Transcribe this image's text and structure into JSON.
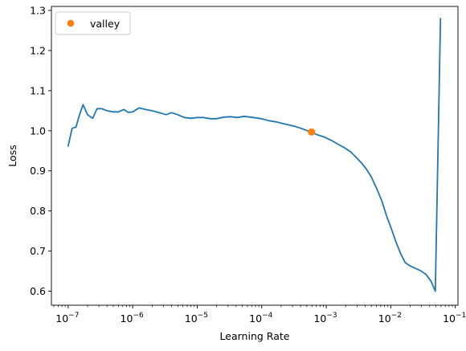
{
  "chart_data": {
    "type": "line",
    "title": "",
    "xlabel": "Learning Rate",
    "ylabel": "Loss",
    "xscale": "log",
    "xlim": [
      5.5e-08,
      0.11
    ],
    "ylim": [
      0.565,
      1.31
    ],
    "x_ticks": [
      {
        "value": 1e-07,
        "label": "10",
        "exp": "−7"
      },
      {
        "value": 1e-06,
        "label": "10",
        "exp": "−6"
      },
      {
        "value": 1e-05,
        "label": "10",
        "exp": "−5"
      },
      {
        "value": 0.0001,
        "label": "10",
        "exp": "−4"
      },
      {
        "value": 0.001,
        "label": "10",
        "exp": "−3"
      },
      {
        "value": 0.01,
        "label": "10",
        "exp": "−2"
      },
      {
        "value": 0.1,
        "label": "10",
        "exp": "−1"
      }
    ],
    "y_ticks": [
      {
        "value": 0.6,
        "label": "0.6"
      },
      {
        "value": 0.7,
        "label": "0.7"
      },
      {
        "value": 0.8,
        "label": "0.8"
      },
      {
        "value": 0.9,
        "label": "0.9"
      },
      {
        "value": 1.0,
        "label": "1.0"
      },
      {
        "value": 1.1,
        "label": "1.1"
      },
      {
        "value": 1.2,
        "label": "1.2"
      },
      {
        "value": 1.3,
        "label": "1.3"
      }
    ],
    "grid": false,
    "legend": {
      "position": "top-left",
      "entries": [
        "valley"
      ]
    },
    "series": [
      {
        "color": "#1f77b4",
        "points": [
          [
            1e-07,
            0.962
          ],
          [
            1.15e-07,
            1.006
          ],
          [
            1.32e-07,
            1.009
          ],
          [
            1.5e-07,
            1.04
          ],
          [
            1.7e-07,
            1.065
          ],
          [
            2e-07,
            1.04
          ],
          [
            2.4e-07,
            1.031
          ],
          [
            2.8e-07,
            1.055
          ],
          [
            3.3e-07,
            1.055
          ],
          [
            4e-07,
            1.05
          ],
          [
            5e-07,
            1.047
          ],
          [
            6e-07,
            1.047
          ],
          [
            7.3e-07,
            1.053
          ],
          [
            8.5e-07,
            1.046
          ],
          [
            1e-06,
            1.047
          ],
          [
            1.25e-06,
            1.057
          ],
          [
            1.6e-06,
            1.053
          ],
          [
            2e-06,
            1.05
          ],
          [
            2.6e-06,
            1.045
          ],
          [
            3.3e-06,
            1.04
          ],
          [
            4e-06,
            1.045
          ],
          [
            5e-06,
            1.04
          ],
          [
            6.3e-06,
            1.033
          ],
          [
            8e-06,
            1.031
          ],
          [
            1e-05,
            1.033
          ],
          [
            1.25e-05,
            1.033
          ],
          [
            1.6e-05,
            1.03
          ],
          [
            2e-05,
            1.03
          ],
          [
            2.6e-05,
            1.034
          ],
          [
            3.3e-05,
            1.035
          ],
          [
            4.2e-05,
            1.033
          ],
          [
            5.3e-05,
            1.036
          ],
          [
            6.6e-05,
            1.034
          ],
          [
            8.3e-05,
            1.032
          ],
          [
            0.000105,
            1.029
          ],
          [
            0.00013,
            1.025
          ],
          [
            0.00017,
            1.022
          ],
          [
            0.00021,
            1.018
          ],
          [
            0.00027,
            1.014
          ],
          [
            0.00034,
            1.01
          ],
          [
            0.00044,
            1.004
          ],
          [
            0.00057,
            0.997
          ],
          [
            0.00073,
            0.99
          ],
          [
            0.00094,
            0.984
          ],
          [
            0.0012,
            0.976
          ],
          [
            0.0015,
            0.967
          ],
          [
            0.0019,
            0.958
          ],
          [
            0.0024,
            0.947
          ],
          [
            0.0029,
            0.934
          ],
          [
            0.0035,
            0.92
          ],
          [
            0.0042,
            0.904
          ],
          [
            0.005,
            0.885
          ],
          [
            0.006,
            0.857
          ],
          [
            0.0072,
            0.827
          ],
          [
            0.0086,
            0.788
          ],
          [
            0.0102,
            0.756
          ],
          [
            0.012,
            0.723
          ],
          [
            0.0142,
            0.694
          ],
          [
            0.0168,
            0.671
          ],
          [
            0.02,
            0.663
          ],
          [
            0.024,
            0.657
          ],
          [
            0.029,
            0.651
          ],
          [
            0.035,
            0.642
          ],
          [
            0.042,
            0.625
          ],
          [
            0.049,
            0.6
          ],
          [
            0.059,
            1.28
          ]
        ]
      },
      {
        "name": "valley",
        "color": "#ff7f0e",
        "marker": "circle",
        "points": [
          [
            0.00059,
            0.997
          ]
        ]
      }
    ]
  }
}
